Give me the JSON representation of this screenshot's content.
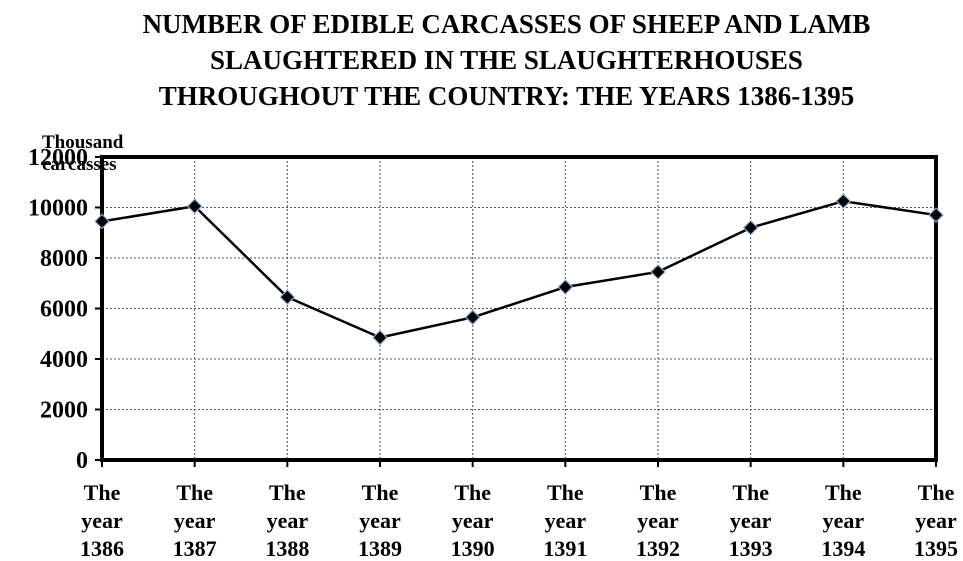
{
  "chart_data": {
    "type": "line",
    "title_lines": [
      "NUMBER OF EDIBLE CARCASSES OF SHEEP AND LAMB",
      "SLAUGHTERED IN THE SLAUGHTERHOUSES",
      "THROUGHOUT THE COUNTRY: THE YEARS 1386-1395"
    ],
    "ylabel_lines": [
      "Thousand",
      "carcasses"
    ],
    "xlabel": "",
    "categories": [
      [
        "The",
        "year",
        "1386"
      ],
      [
        "The",
        "year",
        "1387"
      ],
      [
        "The",
        "year",
        "1388"
      ],
      [
        "The",
        "year",
        "1389"
      ],
      [
        "The",
        "year",
        "1390"
      ],
      [
        "The",
        "year",
        "1391"
      ],
      [
        "The",
        "year",
        "1392"
      ],
      [
        "The",
        "year",
        "1393"
      ],
      [
        "The",
        "year",
        "1394"
      ],
      [
        "The",
        "year",
        "1395"
      ]
    ],
    "series": [
      {
        "values": [
          9450,
          10050,
          6450,
          4850,
          5650,
          6850,
          7450,
          9200,
          10250,
          9700
        ]
      }
    ],
    "ylim": [
      0,
      12000
    ],
    "yticks": [
      0,
      2000,
      4000,
      6000,
      8000,
      10000,
      12000
    ],
    "grid": true,
    "line_color": "#000000",
    "marker_color": "#000000",
    "marker_edge_color": "#8fb0d6"
  }
}
